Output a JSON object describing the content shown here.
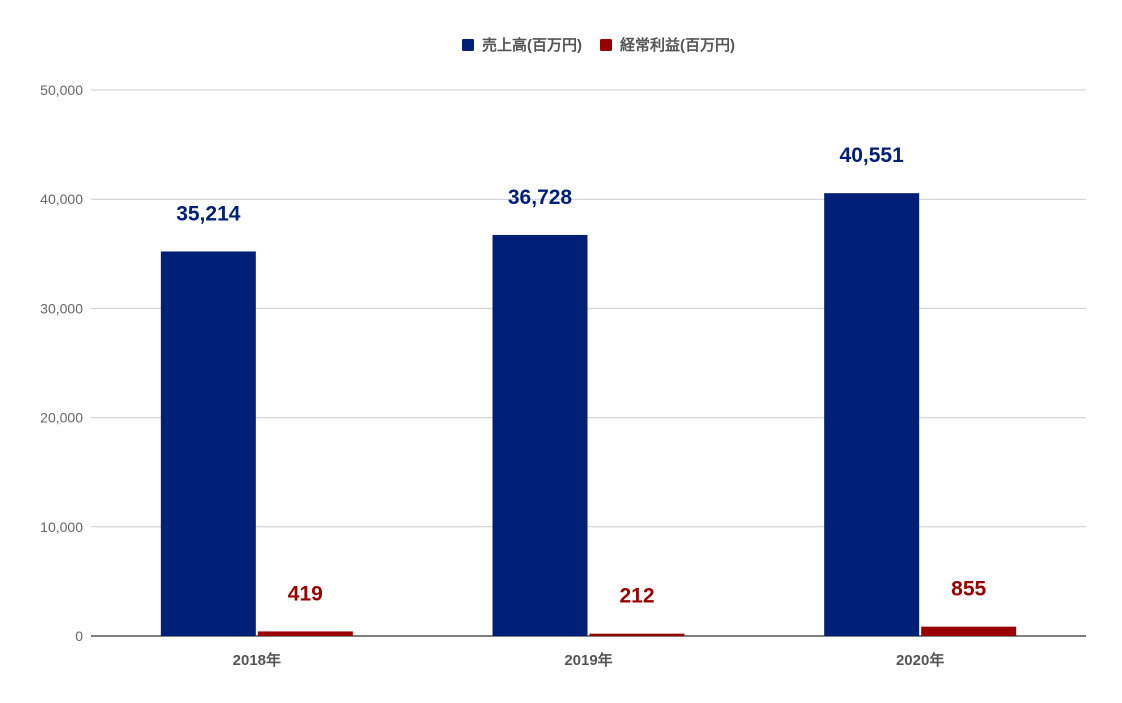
{
  "chart_data": {
    "type": "bar",
    "title": "",
    "xlabel": "",
    "ylabel": "",
    "categories": [
      "2018年",
      "2019年",
      "2020年"
    ],
    "series": [
      {
        "name": "売上高(百万円)",
        "values": [
          35214,
          36728,
          40551
        ],
        "labels": [
          "35,214",
          "36,728",
          "40,551"
        ],
        "color": "#002078"
      },
      {
        "name": "経常利益(百万円)",
        "values": [
          419,
          212,
          855
        ],
        "labels": [
          "419",
          "212",
          "855"
        ],
        "color": "#990000"
      }
    ],
    "ylim": [
      0,
      50000
    ],
    "yticks": [
      0,
      10000,
      20000,
      30000,
      40000,
      50000
    ],
    "ytick_labels": [
      "0",
      "10,000",
      "20,000",
      "30,000",
      "40,000",
      "50,000"
    ],
    "grid": true,
    "legend_position": "top-center",
    "colors": {
      "gridline": "#cccccc",
      "axis": "#333333",
      "text": "#555555",
      "tick_text": "#666666"
    }
  }
}
